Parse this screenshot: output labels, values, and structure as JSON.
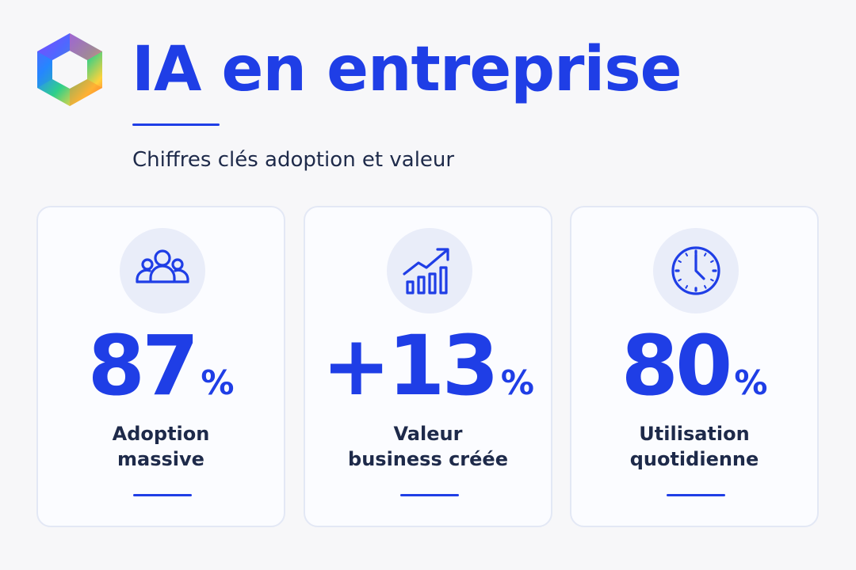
{
  "header": {
    "title": "IA en entreprise",
    "subtitle": "Chiffres clés adoption et valeur"
  },
  "colors": {
    "accent": "#1f3ee6",
    "text_dark": "#1e2a4a"
  },
  "cards": [
    {
      "icon": "people-group-icon",
      "value": "87",
      "unit": "%",
      "label_lines": [
        "Adoption",
        "massive"
      ]
    },
    {
      "icon": "bar-chart-trend-icon",
      "value": "+13",
      "unit": "%",
      "label_lines": [
        "Valeur",
        "business créée"
      ]
    },
    {
      "icon": "clock-icon",
      "value": "80",
      "unit": "%",
      "label_lines": [
        "Utilisation",
        "quotidienne"
      ]
    }
  ]
}
